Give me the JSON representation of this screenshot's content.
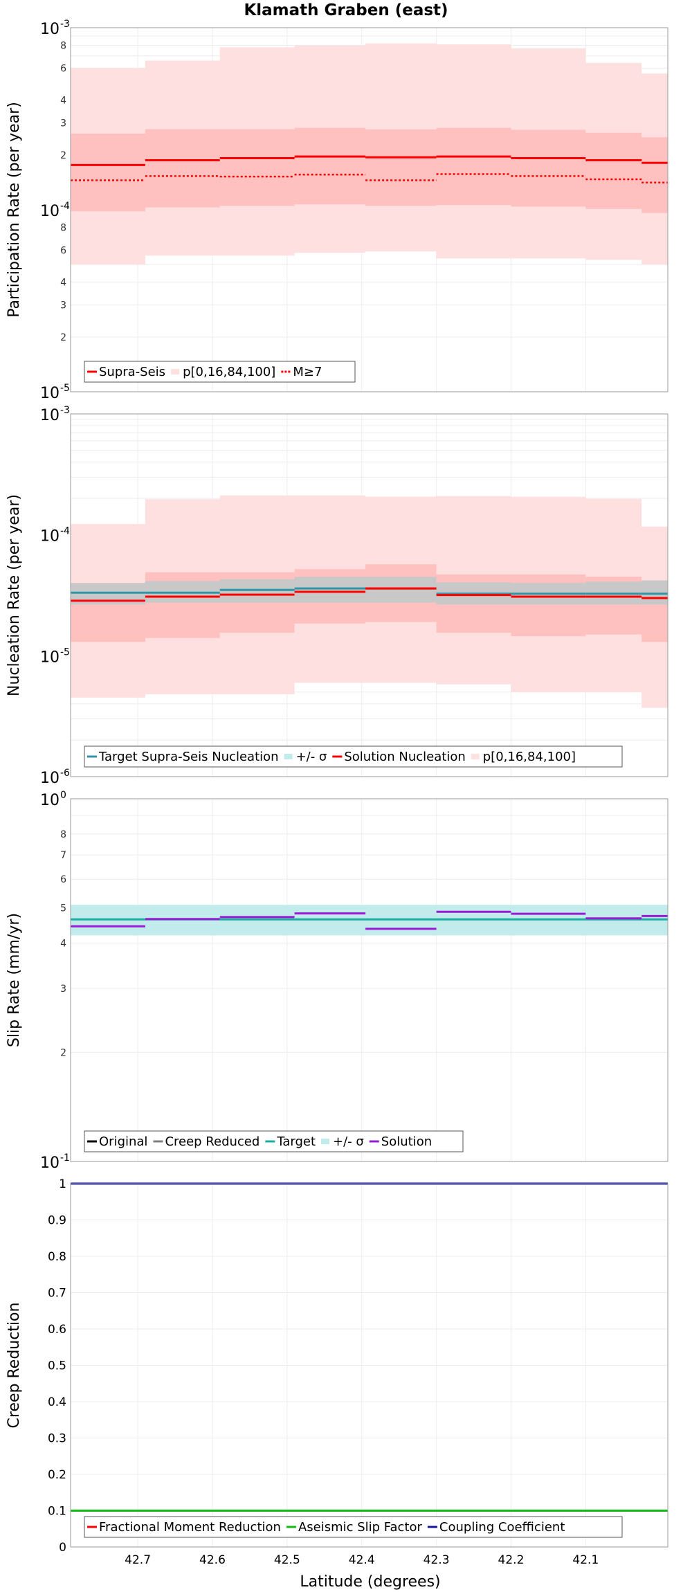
{
  "figure_title": "Klamath Graben (east)",
  "x_axis": {
    "label": "Latitude (degrees)",
    "range": [
      42.79,
      41.99
    ],
    "ticks": [
      "42.7",
      "42.6",
      "42.5",
      "42.4",
      "42.3",
      "42.2",
      "42.1"
    ]
  },
  "colors": {
    "red": "#ff0000",
    "light_pink": "#ffe0e0",
    "mid_pink": "#ffc0c0",
    "gray_band": "#c8c8c8",
    "target_line": "#2f96a6",
    "gray_line": "#808080",
    "cyan_band": "#c2ecec",
    "teal": "#1aaea0",
    "purple": "#9a1ad6",
    "black": "#000000",
    "green": "#11bb11",
    "navy": "#1515a0"
  },
  "chart_data": [
    {
      "type": "line",
      "title": "Klamath Graben (east)",
      "ylabel": "Participation Rate (per year)",
      "yscale": "log",
      "ylim": [
        1e-05,
        0.001
      ],
      "ytick_labels": {
        "0.001": [
          "10",
          "-3"
        ],
        "0.0001": [
          "10",
          "-4"
        ],
        "0.00001": [
          "10",
          "-5"
        ],
        "0.0008": "8",
        "0.0006": "6",
        "0.0004": "4",
        "0.0003": "3",
        "0.0002": "2",
        "0.00008": "8",
        "0.00006": "6",
        "0.00004": "4",
        "0.00003": "3",
        "0.00002": "2"
      },
      "x_bins": [
        42.79,
        42.69,
        42.59,
        42.49,
        42.395,
        42.3,
        42.2,
        42.1,
        42.025,
        41.99
      ],
      "bands": [
        {
          "role": "p0-100",
          "color": "light_pink",
          "lower": [
            5e-05,
            5.6e-05,
            5.6e-05,
            5.8e-05,
            5.9e-05,
            5.4e-05,
            5.4e-05,
            5.3e-05,
            5e-05
          ],
          "upper": [
            0.0006,
            0.00066,
            0.00078,
            0.0008,
            0.00082,
            0.00081,
            0.00077,
            0.00064,
            0.00056
          ]
        },
        {
          "role": "p16-84",
          "color": "mid_pink",
          "lower": [
            9.8e-05,
            0.000103,
            0.000105,
            0.000107,
            0.000105,
            0.000106,
            0.000104,
            0.000101,
            9.6e-05
          ],
          "upper": [
            0.000262,
            0.000277,
            0.000277,
            0.000282,
            0.000276,
            0.000282,
            0.000275,
            0.000265,
            0.00025
          ]
        }
      ],
      "series": [
        {
          "name": "Supra-Seis",
          "style": "solid",
          "color": "red",
          "values": [
            0.000176,
            0.000187,
            0.000192,
            0.000196,
            0.000194,
            0.000196,
            0.000192,
            0.000187,
            0.000181,
            0.000168
          ]
        },
        {
          "name": "M≥7",
          "style": "dotted",
          "color": "red",
          "values": [
            0.000145,
            0.000153,
            0.000152,
            0.000156,
            0.000145,
            0.000157,
            0.000153,
            0.000147,
            0.000141,
            0.000132
          ]
        }
      ],
      "legend": {
        "placement": "bottom-left",
        "entries": [
          {
            "label": "Supra-Seis",
            "kind": "line",
            "color": "red"
          },
          {
            "label": "p[0,16,84,100]",
            "kind": "band",
            "color": "light_pink"
          },
          {
            "label": "M≥7",
            "kind": "dotted",
            "color": "red"
          }
        ]
      }
    },
    {
      "type": "line",
      "ylabel": "Nucleation Rate (per year)",
      "yscale": "log",
      "ylim": [
        1e-06,
        0.001
      ],
      "ytick_labels": {
        "0.001": [
          "10",
          "-3"
        ],
        "0.0001": [
          "10",
          "-4"
        ],
        "0.00001": [
          "10",
          "-5"
        ],
        "0.000001": [
          "10",
          "-6"
        ]
      },
      "x_bins": [
        42.79,
        42.69,
        42.59,
        42.49,
        42.395,
        42.3,
        42.2,
        42.1,
        42.025,
        41.99
      ],
      "bands": [
        {
          "role": "p0-100",
          "color": "light_pink",
          "lower": [
            4.5e-06,
            4.8e-06,
            4.8e-06,
            6e-06,
            6e-06,
            5.8e-06,
            5e-06,
            5e-06,
            3.7e-06
          ],
          "upper": [
            0.000123,
            0.000197,
            0.000212,
            0.000212,
            0.000207,
            0.000209,
            0.000206,
            0.000198,
            0.000117
          ]
        },
        {
          "role": "p16-84",
          "color": "mid_pink",
          "lower": [
            1.3e-05,
            1.4e-05,
            1.55e-05,
            1.85e-05,
            1.9e-05,
            1.55e-05,
            1.45e-05,
            1.5e-05,
            1.3e-05
          ],
          "upper": [
            4e-05,
            4.9e-05,
            4.9e-05,
            5.2e-05,
            5.7e-05,
            4.7e-05,
            4.7e-05,
            4.5e-05,
            4e-05
          ]
        },
        {
          "role": "target-sigma",
          "color": "gray_band",
          "lower": [
            2.65e-05,
            2.75e-05,
            2.75e-05,
            2.75e-05,
            2.75e-05,
            2.65e-05,
            2.65e-05,
            2.65e-05,
            2.65e-05
          ],
          "upper": [
            4e-05,
            4.15e-05,
            4.3e-05,
            4.5e-05,
            4.5e-05,
            4.05e-05,
            4e-05,
            4.1e-05,
            4.2e-05
          ]
        }
      ],
      "series": [
        {
          "name": "Target Supra-Seis Nucleation",
          "style": "solid",
          "color": "target_line",
          "values": [
            3.32e-05,
            3.32e-05,
            3.5e-05,
            3.6e-05,
            3.6e-05,
            3.26e-05,
            3.26e-05,
            3.26e-05,
            3.26e-05,
            3.2e-05
          ]
        },
        {
          "name": "Solution Nucleation",
          "style": "solid",
          "color": "red",
          "values": [
            2.85e-05,
            3.08e-05,
            3.2e-05,
            3.38e-05,
            3.6e-05,
            3.18e-05,
            3.08e-05,
            3.08e-05,
            3e-05,
            2.75e-05
          ]
        }
      ],
      "legend": {
        "placement": "bottom-left",
        "entries": [
          {
            "label": "Target Supra-Seis Nucleation",
            "kind": "line",
            "color": "target_line"
          },
          {
            "label": "+/- σ",
            "kind": "band",
            "color": "cyan_band"
          },
          {
            "label": "Solution Nucleation",
            "kind": "line",
            "color": "red"
          },
          {
            "label": "p[0,16,84,100]",
            "kind": "band",
            "color": "light_pink"
          }
        ]
      }
    },
    {
      "type": "line",
      "ylabel": "Slip Rate (mm/yr)",
      "yscale": "log",
      "ylim": [
        1,
        10
      ],
      "ytick_labels": {
        "10": [
          "10",
          "0"
        ],
        "1": [
          "10",
          "-1"
        ],
        "8": "8",
        "7": "7",
        "6": "6",
        "5": "5",
        "4": "4",
        "3": "3",
        "2": "2"
      },
      "x_bins": [
        42.79,
        42.69,
        42.59,
        42.49,
        42.395,
        42.3,
        42.2,
        42.1,
        42.025,
        41.99
      ],
      "bands": [
        {
          "role": "target-sigma",
          "color": "cyan_band",
          "lower": [
            4.2,
            4.2,
            4.2,
            4.2,
            4.2,
            4.2,
            4.2,
            4.2,
            4.2
          ],
          "upper": [
            5.1,
            5.1,
            5.1,
            5.1,
            5.1,
            5.1,
            5.1,
            5.1,
            5.1
          ]
        }
      ],
      "series": [
        {
          "name": "Target",
          "style": "solid",
          "color": "teal",
          "values": [
            4.65,
            4.65,
            4.65,
            4.65,
            4.65,
            4.65,
            4.65,
            4.65,
            4.65,
            4.65
          ]
        },
        {
          "name": "Solution",
          "style": "solid",
          "color": "purple",
          "values": [
            4.45,
            4.66,
            4.72,
            4.83,
            4.38,
            4.88,
            4.82,
            4.68,
            4.75,
            4.45
          ]
        }
      ],
      "legend": {
        "placement": "bottom-left",
        "entries": [
          {
            "label": "Original",
            "kind": "line",
            "color": "black"
          },
          {
            "label": "Creep Reduced",
            "kind": "line",
            "color": "gray_line"
          },
          {
            "label": "Target",
            "kind": "line",
            "color": "teal"
          },
          {
            "label": "+/- σ",
            "kind": "band",
            "color": "cyan_band"
          },
          {
            "label": "Solution",
            "kind": "line",
            "color": "purple"
          }
        ]
      }
    },
    {
      "type": "line",
      "ylabel": "Creep Reduction",
      "yscale": "linear",
      "ylim": [
        0,
        1
      ],
      "yticks": [
        "0",
        "0.1",
        "0.2",
        "0.3",
        "0.4",
        "0.5",
        "0.6",
        "0.7",
        "0.8",
        "0.9",
        "1"
      ],
      "x_bins": [
        42.79,
        41.99
      ],
      "series": [
        {
          "name": "Coupling Coefficient",
          "style": "solid",
          "color": "navy",
          "values": [
            1,
            1
          ]
        },
        {
          "name": "Aseismic Slip Factor",
          "style": "solid",
          "color": "green",
          "values": [
            0.1,
            0.1
          ]
        }
      ],
      "legend": {
        "placement": "bottom-left",
        "entries": [
          {
            "label": "Fractional Moment Reduction",
            "kind": "line",
            "color": "red"
          },
          {
            "label": "Aseismic Slip Factor",
            "kind": "line",
            "color": "green"
          },
          {
            "label": "Coupling Coefficient",
            "kind": "line",
            "color": "navy"
          }
        ]
      }
    }
  ]
}
